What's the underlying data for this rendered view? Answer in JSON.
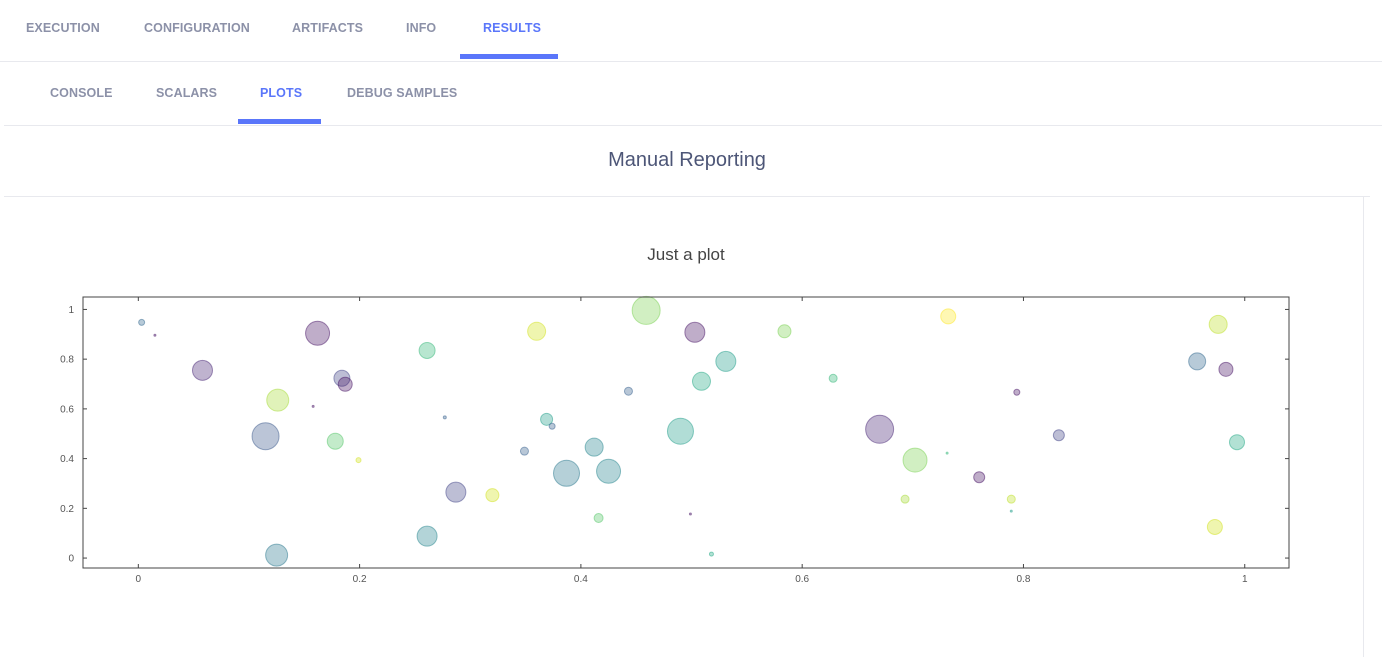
{
  "top_tabs": [
    {
      "label": "EXECUTION",
      "active": false
    },
    {
      "label": "CONFIGURATION",
      "active": false
    },
    {
      "label": "ARTIFACTS",
      "active": false
    },
    {
      "label": "INFO",
      "active": false
    },
    {
      "label": "RESULTS",
      "active": true
    }
  ],
  "sub_tabs": [
    {
      "label": "CONSOLE",
      "active": false
    },
    {
      "label": "SCALARS",
      "active": false
    },
    {
      "label": "PLOTS",
      "active": true
    },
    {
      "label": "DEBUG SAMPLES",
      "active": false
    }
  ],
  "section_title": "Manual Reporting",
  "accent_color": "#5a76fa",
  "chart_data": {
    "type": "scatter",
    "title": "Just a plot",
    "xlabel": "",
    "ylabel": "",
    "xlim": [
      -0.05,
      1.04
    ],
    "ylim": [
      -0.04,
      1.05
    ],
    "xticks": [
      0,
      0.2,
      0.4,
      0.6,
      0.8,
      1
    ],
    "xtick_labels": [
      "0",
      "0.2",
      "0.4",
      "0.6",
      "0.8",
      "1"
    ],
    "yticks": [
      0,
      0.2,
      0.4,
      0.6,
      0.8,
      1
    ],
    "ytick_labels": [
      "0",
      "0.2",
      "0.4",
      "0.6",
      "0.8",
      "1"
    ],
    "grid": false,
    "marker_opacity": 0.35,
    "colorscale": "viridis",
    "points": [
      {
        "x": 0.003,
        "y": 0.948,
        "size": 6,
        "color": "#31688e"
      },
      {
        "x": 0.015,
        "y": 0.896,
        "size": 2,
        "color": "#471365"
      },
      {
        "x": 0.058,
        "y": 0.755,
        "size": 20,
        "color": "#482576"
      },
      {
        "x": 0.162,
        "y": 0.904,
        "size": 24,
        "color": "#471365"
      },
      {
        "x": 0.126,
        "y": 0.635,
        "size": 22,
        "color": "#a5db36"
      },
      {
        "x": 0.115,
        "y": 0.49,
        "size": 27,
        "color": "#3b5a8c"
      },
      {
        "x": 0.184,
        "y": 0.723,
        "size": 16,
        "color": "#414487"
      },
      {
        "x": 0.187,
        "y": 0.699,
        "size": 14,
        "color": "#471365"
      },
      {
        "x": 0.158,
        "y": 0.61,
        "size": 2,
        "color": "#471365"
      },
      {
        "x": 0.178,
        "y": 0.47,
        "size": 16,
        "color": "#54c568"
      },
      {
        "x": 0.199,
        "y": 0.394,
        "size": 5,
        "color": "#d2e21b"
      },
      {
        "x": 0.125,
        "y": 0.012,
        "size": 22,
        "color": "#2a788e"
      },
      {
        "x": 0.261,
        "y": 0.835,
        "size": 16,
        "color": "#35b779"
      },
      {
        "x": 0.277,
        "y": 0.566,
        "size": 3,
        "color": "#355f8d"
      },
      {
        "x": 0.287,
        "y": 0.265,
        "size": 20,
        "color": "#414487"
      },
      {
        "x": 0.261,
        "y": 0.088,
        "size": 20,
        "color": "#25858e"
      },
      {
        "x": 0.32,
        "y": 0.253,
        "size": 13,
        "color": "#d2e21b"
      },
      {
        "x": 0.36,
        "y": 0.912,
        "size": 18,
        "color": "#d2e21b"
      },
      {
        "x": 0.369,
        "y": 0.558,
        "size": 12,
        "color": "#1f9e89"
      },
      {
        "x": 0.374,
        "y": 0.53,
        "size": 6,
        "color": "#355f8d"
      },
      {
        "x": 0.349,
        "y": 0.43,
        "size": 8,
        "color": "#355f8d"
      },
      {
        "x": 0.387,
        "y": 0.341,
        "size": 26,
        "color": "#2a788e"
      },
      {
        "x": 0.412,
        "y": 0.446,
        "size": 18,
        "color": "#25858e"
      },
      {
        "x": 0.425,
        "y": 0.349,
        "size": 24,
        "color": "#25858e"
      },
      {
        "x": 0.416,
        "y": 0.161,
        "size": 9,
        "color": "#54c568"
      },
      {
        "x": 0.443,
        "y": 0.671,
        "size": 8,
        "color": "#355f8d"
      },
      {
        "x": 0.459,
        "y": 0.996,
        "size": 28,
        "color": "#7ad151"
      },
      {
        "x": 0.49,
        "y": 0.51,
        "size": 26,
        "color": "#1f9e89"
      },
      {
        "x": 0.503,
        "y": 0.908,
        "size": 20,
        "color": "#471365"
      },
      {
        "x": 0.499,
        "y": 0.177,
        "size": 2,
        "color": "#471365"
      },
      {
        "x": 0.518,
        "y": 0.016,
        "size": 4,
        "color": "#22a884"
      },
      {
        "x": 0.509,
        "y": 0.711,
        "size": 18,
        "color": "#22a884"
      },
      {
        "x": 0.531,
        "y": 0.791,
        "size": 20,
        "color": "#1f9e89"
      },
      {
        "x": 0.584,
        "y": 0.912,
        "size": 13,
        "color": "#7ad151"
      },
      {
        "x": 0.628,
        "y": 0.723,
        "size": 8,
        "color": "#35b779"
      },
      {
        "x": 0.67,
        "y": 0.518,
        "size": 28,
        "color": "#482576"
      },
      {
        "x": 0.702,
        "y": 0.394,
        "size": 24,
        "color": "#7ad151"
      },
      {
        "x": 0.693,
        "y": 0.237,
        "size": 8,
        "color": "#a5db36"
      },
      {
        "x": 0.732,
        "y": 0.972,
        "size": 15,
        "color": "#fde725"
      },
      {
        "x": 0.731,
        "y": 0.422,
        "size": 2,
        "color": "#35b779"
      },
      {
        "x": 0.76,
        "y": 0.325,
        "size": 11,
        "color": "#471365"
      },
      {
        "x": 0.789,
        "y": 0.237,
        "size": 8,
        "color": "#bddf26"
      },
      {
        "x": 0.789,
        "y": 0.189,
        "size": 2,
        "color": "#1f9e89"
      },
      {
        "x": 0.794,
        "y": 0.667,
        "size": 6,
        "color": "#471365"
      },
      {
        "x": 0.832,
        "y": 0.494,
        "size": 11,
        "color": "#414487"
      },
      {
        "x": 0.957,
        "y": 0.791,
        "size": 17,
        "color": "#31688e"
      },
      {
        "x": 0.976,
        "y": 0.94,
        "size": 18,
        "color": "#bddf26"
      },
      {
        "x": 0.983,
        "y": 0.759,
        "size": 14,
        "color": "#471365"
      },
      {
        "x": 0.993,
        "y": 0.466,
        "size": 15,
        "color": "#22a884"
      },
      {
        "x": 0.973,
        "y": 0.125,
        "size": 15,
        "color": "#d2e21b"
      }
    ]
  }
}
